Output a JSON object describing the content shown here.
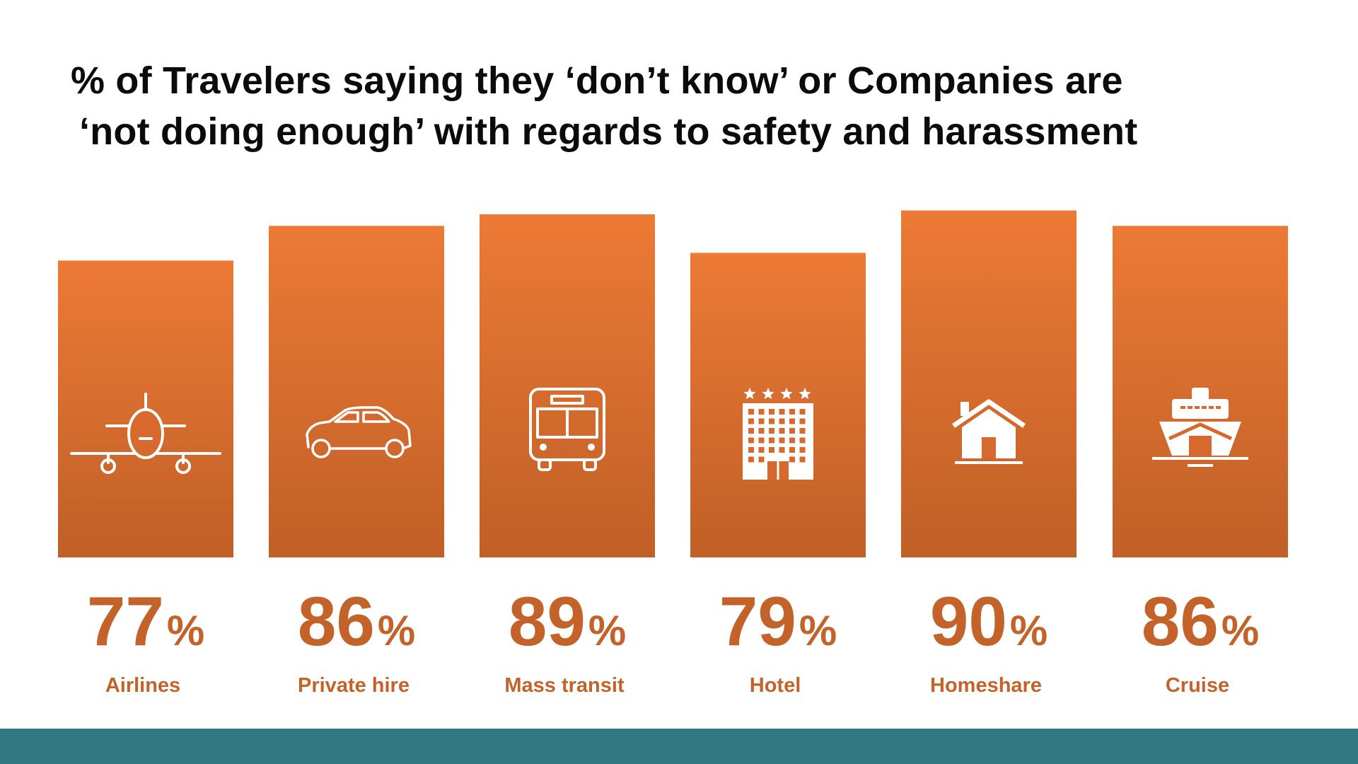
{
  "title_lines": [
    "% of Travelers saying they ‘don’t know’ or Companies are",
    "‘not doing enough’ with regards to safety and harassment"
  ],
  "colors": {
    "bar_top": "#EC7A35",
    "bar_bottom": "#C05F27",
    "value_text": "#C3632A",
    "icon": "#FFFFFF",
    "footer": "#327781"
  },
  "chart_data": {
    "type": "bar",
    "title": "% of Travelers saying they ‘don’t know’ or Companies are ‘not doing enough’ with regards to safety and harassment",
    "categories": [
      "Airlines",
      "Private hire",
      "Mass transit",
      "Hotel",
      "Homeshare",
      "Cruise"
    ],
    "values": [
      77,
      86,
      89,
      79,
      90,
      86
    ],
    "unit": "%",
    "icons": [
      "airplane-icon",
      "car-icon",
      "bus-icon",
      "hotel-icon",
      "house-icon",
      "ship-icon"
    ],
    "ylim": [
      0,
      100
    ],
    "grid": false,
    "legend": "none"
  }
}
